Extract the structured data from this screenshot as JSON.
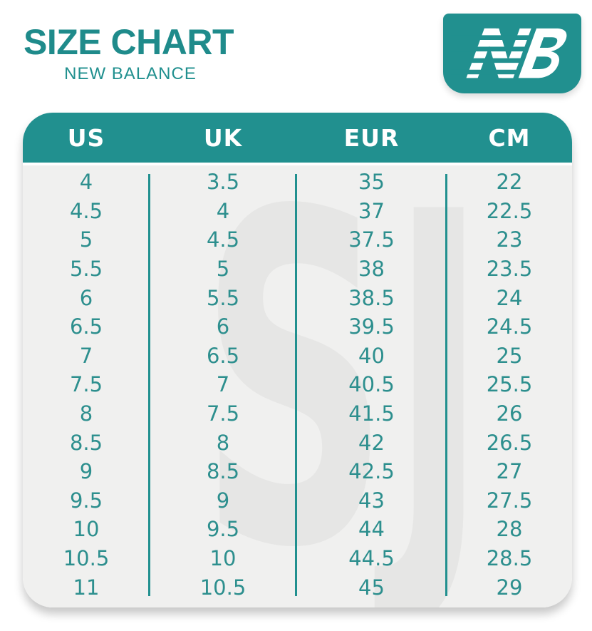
{
  "header": {
    "title": "SIZE CHART",
    "subtitle": "NEW BALANCE"
  },
  "logo": {
    "brand": "New Balance",
    "monogram": "NB"
  },
  "watermark": {
    "text": "SJ"
  },
  "chart_data": {
    "type": "table",
    "title": "SIZE CHART",
    "subtitle": "NEW BALANCE",
    "columns": [
      "US",
      "UK",
      "EUR",
      "CM"
    ],
    "rows": [
      [
        "4",
        "3.5",
        "35",
        "22"
      ],
      [
        "4.5",
        "4",
        "37",
        "22.5"
      ],
      [
        "5",
        "4.5",
        "37.5",
        "23"
      ],
      [
        "5.5",
        "5",
        "38",
        "23.5"
      ],
      [
        "6",
        "5.5",
        "38.5",
        "24"
      ],
      [
        "6.5",
        "6",
        "39.5",
        "24.5"
      ],
      [
        "7",
        "6.5",
        "40",
        "25"
      ],
      [
        "7.5",
        "7",
        "40.5",
        "25.5"
      ],
      [
        "8",
        "7.5",
        "41.5",
        "26"
      ],
      [
        "8.5",
        "8",
        "42",
        "26.5"
      ],
      [
        "9",
        "8.5",
        "42.5",
        "27"
      ],
      [
        "9.5",
        "9",
        "43",
        "27.5"
      ],
      [
        "10",
        "9.5",
        "44",
        "28"
      ],
      [
        "10.5",
        "10",
        "44.5",
        "28.5"
      ],
      [
        "11",
        "10.5",
        "45",
        "29"
      ]
    ]
  },
  "colors": {
    "teal": "#21908f",
    "teal_dark": "#1f8b8b",
    "number_teal": "#2d8f8e",
    "body_bg": "#f0f0ef",
    "watermark_gray": "#e6e6e5",
    "white": "#ffffff"
  }
}
